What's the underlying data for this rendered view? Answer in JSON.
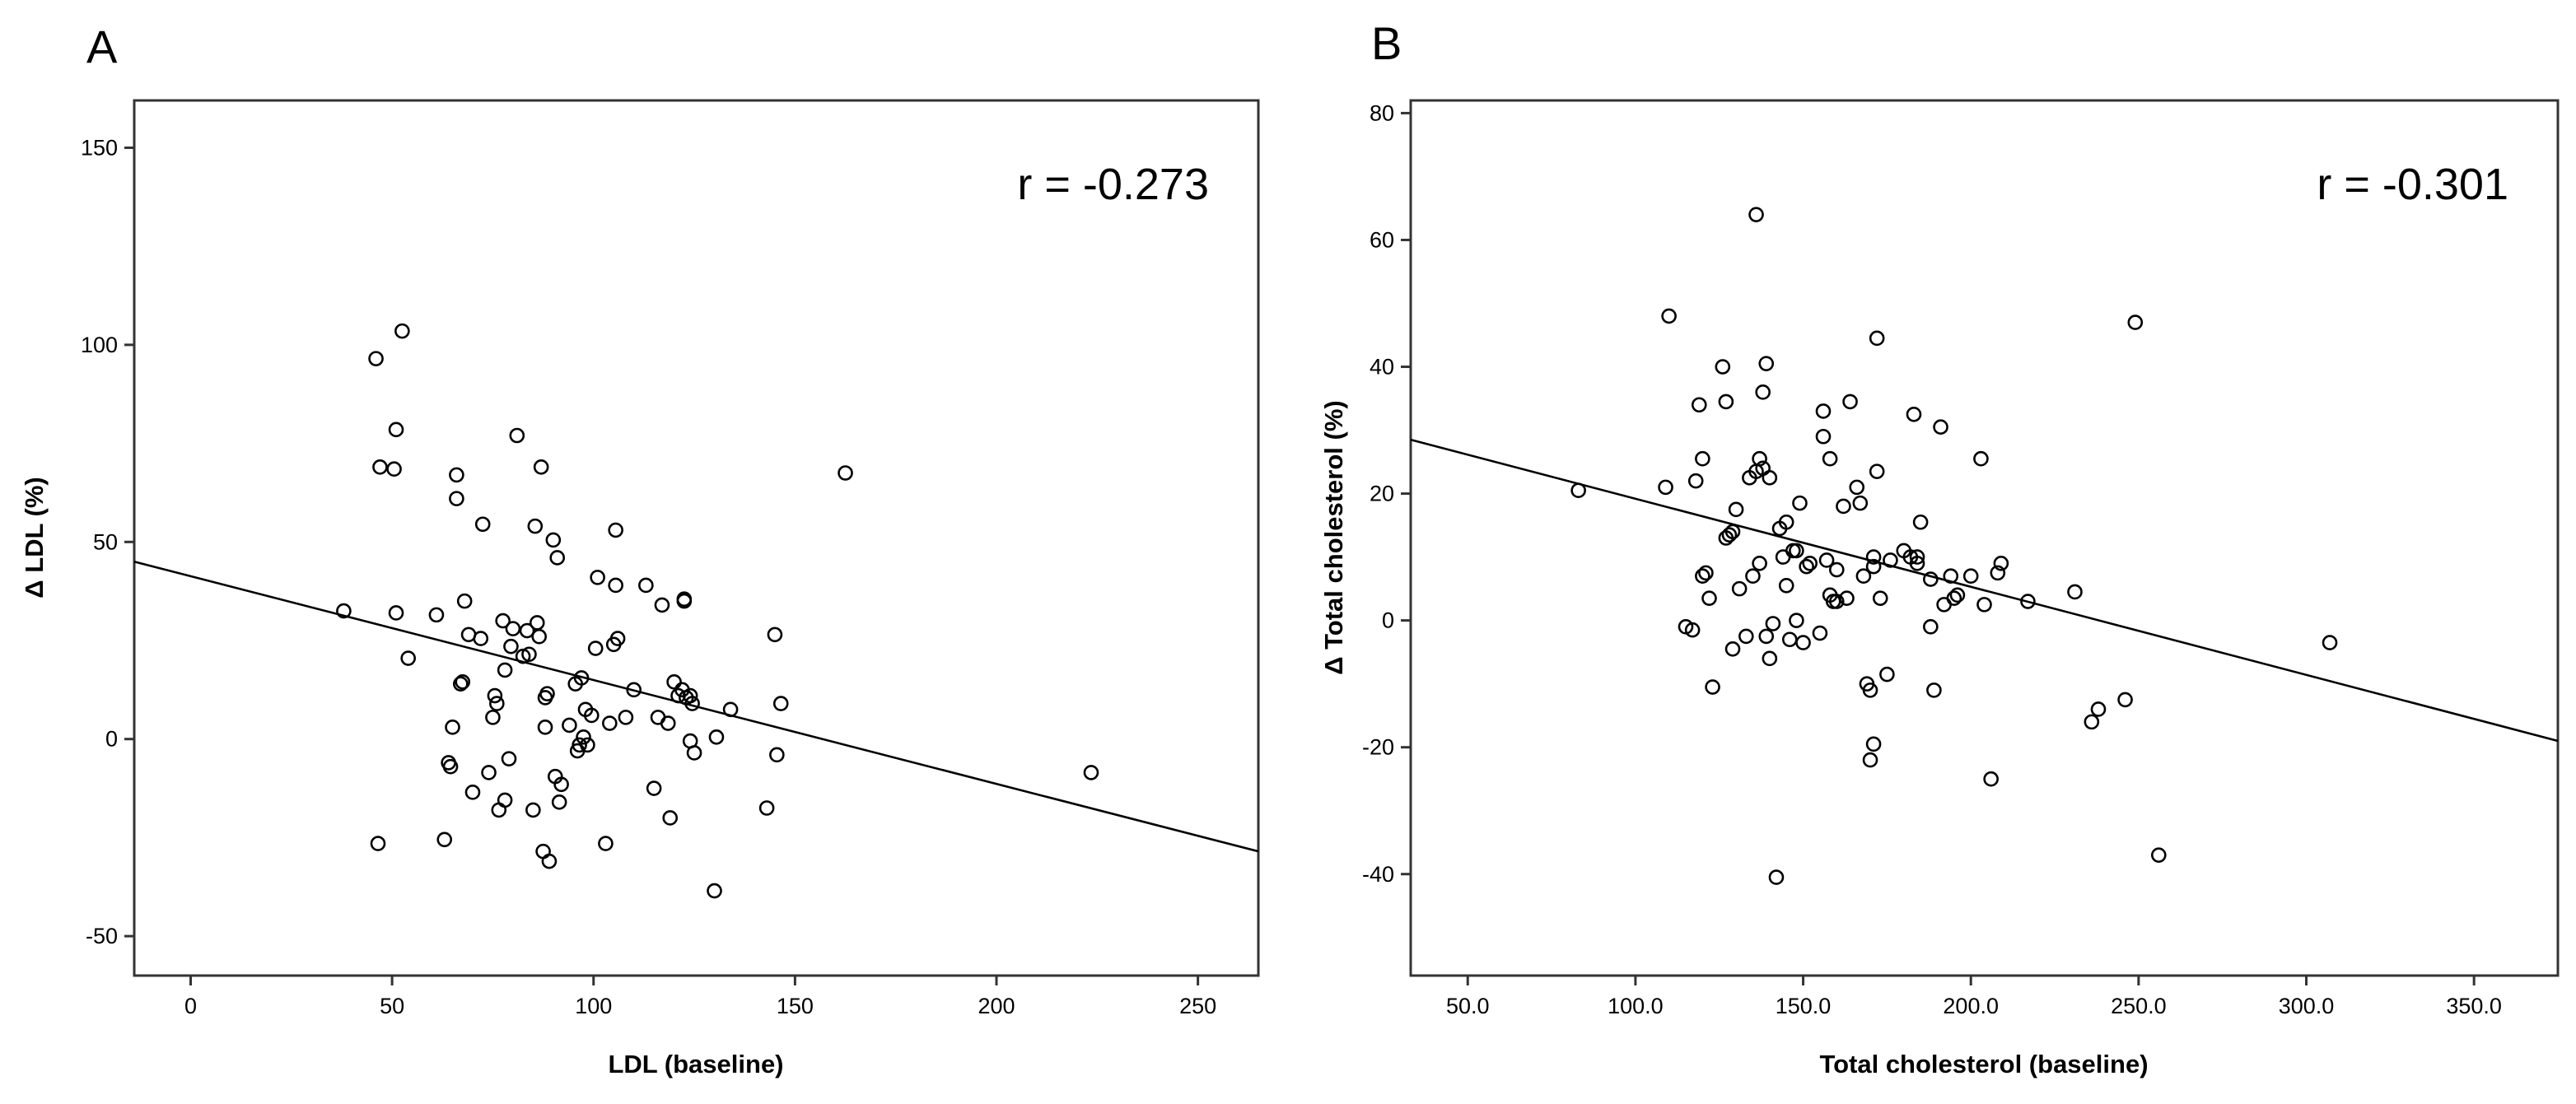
{
  "chart_data": [
    {
      "type": "scatter",
      "panel_label": "A",
      "title": "",
      "xlabel": "LDL (baseline)",
      "ylabel": "Δ LDL (%)",
      "xlim": [
        -14,
        265
      ],
      "ylim": [
        -60,
        162
      ],
      "xticks": [
        0,
        50,
        100,
        150,
        200,
        250
      ],
      "xtick_labels": [
        "0",
        "50",
        "100",
        "150",
        "200",
        "250"
      ],
      "yticks": [
        -50,
        0,
        50,
        100,
        150
      ],
      "ytick_labels": [
        "-50",
        "0",
        "50",
        "100",
        "150"
      ],
      "annotation": "r = -0.273",
      "grid": false,
      "fit_line": {
        "x": [
          -14,
          265
        ],
        "y": [
          45,
          -28.5
        ]
      },
      "points": [
        [
          46,
          96.5
        ],
        [
          52.5,
          103.5
        ],
        [
          47,
          69
        ],
        [
          50.5,
          68.5
        ],
        [
          51,
          78.5
        ],
        [
          38,
          32.5
        ],
        [
          51,
          32
        ],
        [
          54,
          20.5
        ],
        [
          46.5,
          -26.5
        ],
        [
          61,
          31.5
        ],
        [
          63,
          -25.5
        ],
        [
          64,
          -6
        ],
        [
          64.5,
          -7
        ],
        [
          65,
          3
        ],
        [
          66,
          67
        ],
        [
          66,
          61
        ],
        [
          67,
          14
        ],
        [
          67.5,
          14.5
        ],
        [
          68,
          35
        ],
        [
          69,
          26.5
        ],
        [
          70,
          -13.5
        ],
        [
          72,
          25.5
        ],
        [
          72.5,
          54.5
        ],
        [
          74,
          -8.5
        ],
        [
          75,
          5.5
        ],
        [
          75.5,
          11
        ],
        [
          76,
          9
        ],
        [
          76.5,
          -18
        ],
        [
          77.5,
          30
        ],
        [
          78,
          17.5
        ],
        [
          78,
          -15.5
        ],
        [
          79,
          -5
        ],
        [
          79.5,
          23.5
        ],
        [
          80,
          28
        ],
        [
          81,
          77
        ],
        [
          82.5,
          21
        ],
        [
          83.5,
          27.5
        ],
        [
          84,
          21.5
        ],
        [
          85,
          -18
        ],
        [
          85.5,
          54
        ],
        [
          86,
          29.5
        ],
        [
          86.5,
          26
        ],
        [
          87,
          69
        ],
        [
          87.5,
          -28.5
        ],
        [
          88,
          3
        ],
        [
          88,
          10.5
        ],
        [
          88.5,
          11.5
        ],
        [
          89,
          -31
        ],
        [
          90,
          50.5
        ],
        [
          90.5,
          -9.5
        ],
        [
          91,
          46
        ],
        [
          91.5,
          -16
        ],
        [
          92,
          -11.5
        ],
        [
          94,
          3.5
        ],
        [
          95.5,
          14
        ],
        [
          96,
          -3
        ],
        [
          96.5,
          -1.5
        ],
        [
          97,
          15.5
        ],
        [
          97.5,
          0.5
        ],
        [
          98,
          7.5
        ],
        [
          98.5,
          -1.5
        ],
        [
          99.5,
          6
        ],
        [
          100.5,
          23
        ],
        [
          101,
          41
        ],
        [
          103,
          -26.5
        ],
        [
          104,
          4
        ],
        [
          105,
          24
        ],
        [
          105.5,
          53
        ],
        [
          105.5,
          39
        ],
        [
          106,
          25.5
        ],
        [
          108,
          5.5
        ],
        [
          110,
          12.5
        ],
        [
          113,
          39
        ],
        [
          115,
          -12.5
        ],
        [
          116,
          5.5
        ],
        [
          117,
          34
        ],
        [
          118.5,
          4
        ],
        [
          119,
          -20
        ],
        [
          120,
          14.5
        ],
        [
          121,
          11
        ],
        [
          122,
          12.5
        ],
        [
          122.5,
          35
        ],
        [
          122.5,
          35.5
        ],
        [
          123,
          10.5
        ],
        [
          124,
          -0.5
        ],
        [
          124,
          11
        ],
        [
          124.5,
          9
        ],
        [
          125,
          -3.5
        ],
        [
          130,
          -38.5
        ],
        [
          130.5,
          0.5
        ],
        [
          134,
          7.5
        ],
        [
          143,
          -17.5
        ],
        [
          145,
          26.5
        ],
        [
          145.5,
          -4
        ],
        [
          146.5,
          9
        ],
        [
          162.5,
          67.5
        ],
        [
          223.5,
          -8.5
        ]
      ]
    },
    {
      "type": "scatter",
      "panel_label": "B",
      "title": "",
      "xlabel": "Total cholesterol (baseline)",
      "ylabel": "Δ Total cholesterol (%)",
      "xlim": [
        33,
        375
      ],
      "ylim": [
        -56,
        82
      ],
      "xticks": [
        50,
        100,
        150,
        200,
        250,
        300,
        350
      ],
      "xtick_labels": [
        "50.0",
        "100.0",
        "150.0",
        "200.0",
        "250.0",
        "300.0",
        "350.0"
      ],
      "yticks": [
        -40,
        -20,
        0,
        20,
        40,
        60,
        80
      ],
      "ytick_labels": [
        "-40",
        "-20",
        "0",
        "20",
        "40",
        "60",
        "80"
      ],
      "annotation": "r = -0.301",
      "grid": false,
      "fit_line": {
        "x": [
          33,
          375
        ],
        "y": [
          28.5,
          -19
        ]
      },
      "points": [
        [
          83,
          20.5
        ],
        [
          109,
          21
        ],
        [
          110,
          48
        ],
        [
          115,
          -1
        ],
        [
          117,
          -1.5
        ],
        [
          118,
          22
        ],
        [
          119,
          34
        ],
        [
          120,
          25.5
        ],
        [
          120,
          7
        ],
        [
          121,
          7.5
        ],
        [
          122,
          3.5
        ],
        [
          123,
          -10.5
        ],
        [
          126,
          40
        ],
        [
          127,
          34.5
        ],
        [
          127,
          13
        ],
        [
          128,
          13.5
        ],
        [
          129,
          14
        ],
        [
          129,
          -4.5
        ],
        [
          130,
          17.5
        ],
        [
          131,
          5
        ],
        [
          133,
          -2.5
        ],
        [
          134,
          22.5
        ],
        [
          135,
          7
        ],
        [
          136,
          64
        ],
        [
          136,
          23.5
        ],
        [
          137,
          9
        ],
        [
          137,
          25.5
        ],
        [
          138,
          24
        ],
        [
          138,
          36
        ],
        [
          139,
          -2.5
        ],
        [
          139,
          40.5
        ],
        [
          140,
          22.5
        ],
        [
          140,
          -6
        ],
        [
          141,
          -0.5
        ],
        [
          142,
          -40.5
        ],
        [
          143,
          14.5
        ],
        [
          144,
          10
        ],
        [
          145,
          5.5
        ],
        [
          145,
          15.5
        ],
        [
          146,
          -3
        ],
        [
          147,
          11
        ],
        [
          148,
          11
        ],
        [
          148,
          0
        ],
        [
          149,
          18.5
        ],
        [
          150,
          -3.5
        ],
        [
          151,
          8.5
        ],
        [
          152,
          9
        ],
        [
          155,
          -2
        ],
        [
          156,
          29
        ],
        [
          156,
          33
        ],
        [
          157,
          9.5
        ],
        [
          158,
          4
        ],
        [
          158,
          25.5
        ],
        [
          159,
          3
        ],
        [
          160,
          3
        ],
        [
          160,
          8
        ],
        [
          162,
          18
        ],
        [
          163,
          3.5
        ],
        [
          164,
          34.5
        ],
        [
          166,
          21
        ],
        [
          167,
          18.5
        ],
        [
          168,
          7
        ],
        [
          169,
          -10
        ],
        [
          170,
          -22
        ],
        [
          170,
          -11
        ],
        [
          171,
          10
        ],
        [
          171,
          8.5
        ],
        [
          171,
          -19.5
        ],
        [
          172,
          44.5
        ],
        [
          172,
          23.5
        ],
        [
          173,
          3.5
        ],
        [
          175,
          -8.5
        ],
        [
          176,
          9.5
        ],
        [
          180,
          11
        ],
        [
          182,
          10
        ],
        [
          183,
          32.5
        ],
        [
          184,
          10
        ],
        [
          184,
          9
        ],
        [
          185,
          15.5
        ],
        [
          188,
          -1
        ],
        [
          188,
          6.5
        ],
        [
          189,
          -11
        ],
        [
          191,
          30.5
        ],
        [
          192,
          2.5
        ],
        [
          194,
          7
        ],
        [
          195,
          3.5
        ],
        [
          196,
          4
        ],
        [
          200,
          7
        ],
        [
          203,
          25.5
        ],
        [
          204,
          2.5
        ],
        [
          206,
          -25
        ],
        [
          208,
          7.5
        ],
        [
          209,
          9
        ],
        [
          217,
          3
        ],
        [
          231,
          4.5
        ],
        [
          236,
          -16
        ],
        [
          238,
          -14
        ],
        [
          246,
          -12.5
        ],
        [
          249,
          47
        ],
        [
          256,
          -37
        ],
        [
          307,
          -3.5
        ]
      ]
    }
  ]
}
